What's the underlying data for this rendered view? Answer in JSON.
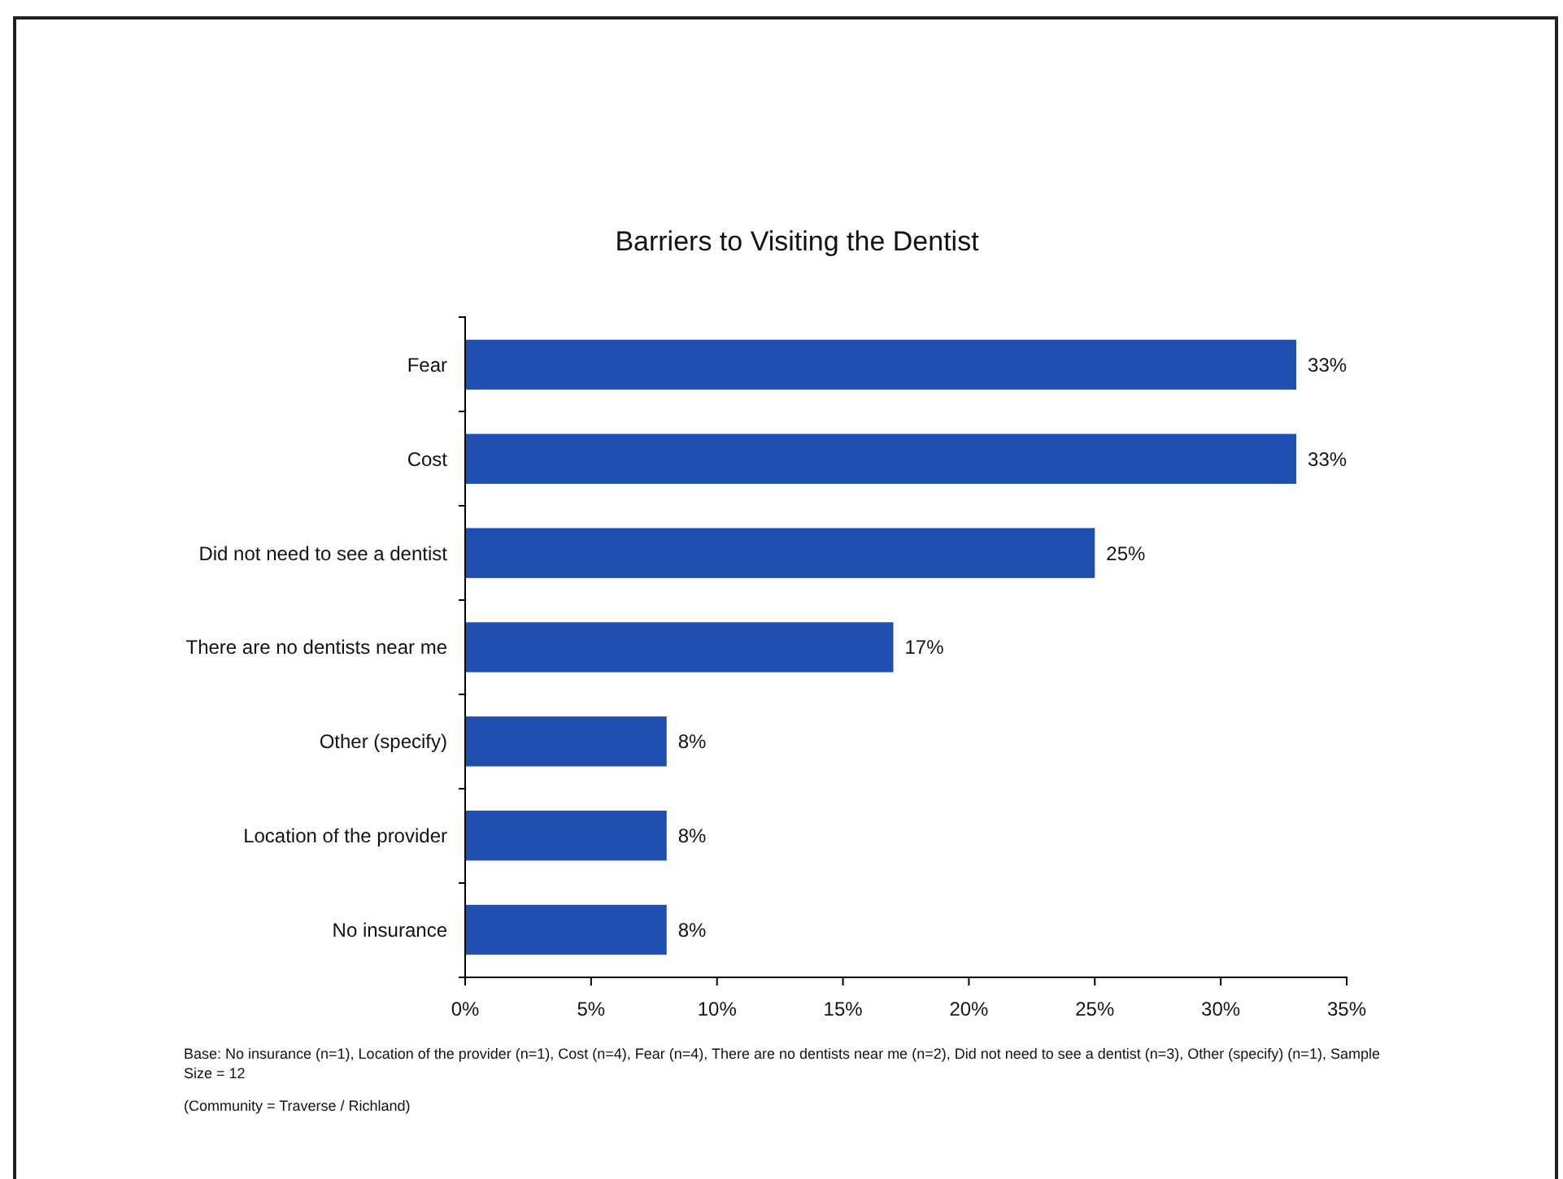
{
  "chart_data": {
    "type": "bar",
    "orientation": "horizontal",
    "title": "Barriers to Visiting the Dentist",
    "categories": [
      "Fear",
      "Cost",
      "Did not need to see a dentist",
      "There are no dentists near me",
      "Other (specify)",
      "Location of the provider",
      "No insurance"
    ],
    "values": [
      33,
      33,
      25,
      17,
      8,
      8,
      8
    ],
    "value_labels": [
      "33%",
      "33%",
      "25%",
      "17%",
      "8%",
      "8%",
      "8%"
    ],
    "color": "#1f4fb0",
    "xlim": [
      0,
      35
    ],
    "xticks": [
      {
        "value": 0,
        "label": "0%"
      },
      {
        "value": 5,
        "label": "5%"
      },
      {
        "value": 10,
        "label": "10%"
      },
      {
        "value": 15,
        "label": "15%"
      },
      {
        "value": 20,
        "label": "20%"
      },
      {
        "value": 25,
        "label": "25%"
      },
      {
        "value": 30,
        "label": "30%"
      },
      {
        "value": 35,
        "label": "35%"
      }
    ],
    "grid": false,
    "annotations": [
      "Base: No insurance (n=1), Location of the provider (n=1), Cost (n=4), Fear (n=4), There are no dentists near me (n=2), Did not need to see a dentist (n=3), Other (specify) (n=1), Sample Size = 12",
      "(Community = Traverse / Richland)"
    ]
  }
}
